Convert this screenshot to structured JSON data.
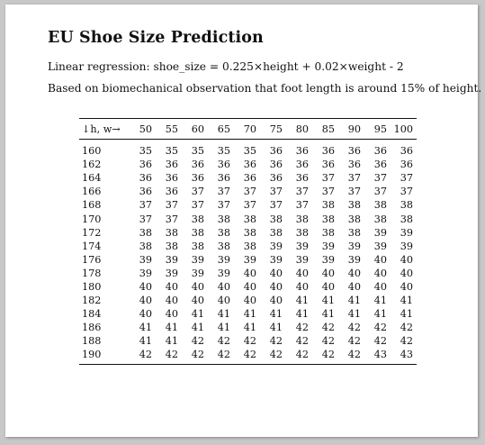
{
  "document": {
    "title": "EU Shoe Size Prediction",
    "formula": "Linear regression: shoe_size = 0.225×height + 0.02×weight - 2",
    "note": "Based on biomechanical observation that foot length is around 15% of height."
  },
  "table": {
    "corner_label": "↓h, w→",
    "weights": [
      "50",
      "55",
      "60",
      "65",
      "70",
      "75",
      "80",
      "85",
      "90",
      "95",
      "100"
    ],
    "rows": [
      {
        "height": "160",
        "sizes": [
          "35",
          "35",
          "35",
          "35",
          "35",
          "36",
          "36",
          "36",
          "36",
          "36",
          "36"
        ]
      },
      {
        "height": "162",
        "sizes": [
          "36",
          "36",
          "36",
          "36",
          "36",
          "36",
          "36",
          "36",
          "36",
          "36",
          "36"
        ]
      },
      {
        "height": "164",
        "sizes": [
          "36",
          "36",
          "36",
          "36",
          "36",
          "36",
          "36",
          "37",
          "37",
          "37",
          "37"
        ]
      },
      {
        "height": "166",
        "sizes": [
          "36",
          "36",
          "37",
          "37",
          "37",
          "37",
          "37",
          "37",
          "37",
          "37",
          "37"
        ]
      },
      {
        "height": "168",
        "sizes": [
          "37",
          "37",
          "37",
          "37",
          "37",
          "37",
          "37",
          "38",
          "38",
          "38",
          "38"
        ]
      },
      {
        "height": "170",
        "sizes": [
          "37",
          "37",
          "38",
          "38",
          "38",
          "38",
          "38",
          "38",
          "38",
          "38",
          "38"
        ]
      },
      {
        "height": "172",
        "sizes": [
          "38",
          "38",
          "38",
          "38",
          "38",
          "38",
          "38",
          "38",
          "38",
          "39",
          "39"
        ]
      },
      {
        "height": "174",
        "sizes": [
          "38",
          "38",
          "38",
          "38",
          "38",
          "39",
          "39",
          "39",
          "39",
          "39",
          "39"
        ]
      },
      {
        "height": "176",
        "sizes": [
          "39",
          "39",
          "39",
          "39",
          "39",
          "39",
          "39",
          "39",
          "39",
          "40",
          "40"
        ]
      },
      {
        "height": "178",
        "sizes": [
          "39",
          "39",
          "39",
          "39",
          "40",
          "40",
          "40",
          "40",
          "40",
          "40",
          "40"
        ]
      },
      {
        "height": "180",
        "sizes": [
          "40",
          "40",
          "40",
          "40",
          "40",
          "40",
          "40",
          "40",
          "40",
          "40",
          "40"
        ]
      },
      {
        "height": "182",
        "sizes": [
          "40",
          "40",
          "40",
          "40",
          "40",
          "40",
          "41",
          "41",
          "41",
          "41",
          "41"
        ]
      },
      {
        "height": "184",
        "sizes": [
          "40",
          "40",
          "41",
          "41",
          "41",
          "41",
          "41",
          "41",
          "41",
          "41",
          "41"
        ]
      },
      {
        "height": "186",
        "sizes": [
          "41",
          "41",
          "41",
          "41",
          "41",
          "41",
          "42",
          "42",
          "42",
          "42",
          "42"
        ]
      },
      {
        "height": "188",
        "sizes": [
          "41",
          "41",
          "42",
          "42",
          "42",
          "42",
          "42",
          "42",
          "42",
          "42",
          "42"
        ]
      },
      {
        "height": "190",
        "sizes": [
          "42",
          "42",
          "42",
          "42",
          "42",
          "42",
          "42",
          "42",
          "42",
          "43",
          "43"
        ]
      }
    ]
  }
}
